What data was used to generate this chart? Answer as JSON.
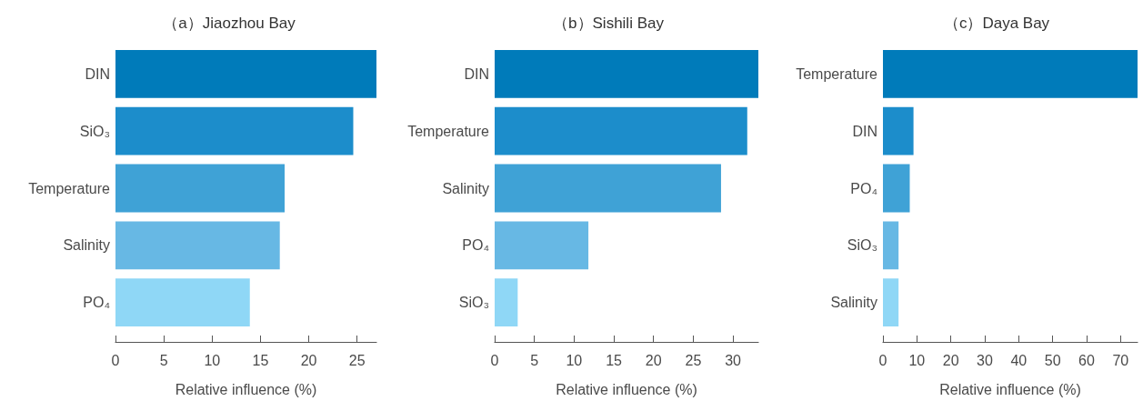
{
  "chart_data": [
    {
      "type": "bar",
      "orientation": "horizontal",
      "title": "（a）Jiaozhou Bay",
      "xlabel": "Relative influence (%)",
      "categories": [
        "DIN",
        "SiO₃",
        "Temperature",
        "Salinity",
        "PO₄"
      ],
      "values": [
        27.0,
        24.6,
        17.5,
        17.0,
        13.9
      ],
      "colors": [
        "#007bba",
        "#1c8dcb",
        "#3fa2d6",
        "#67b8e4",
        "#8fd7f6"
      ],
      "xlim": [
        0,
        27
      ],
      "xticks": [
        0,
        5,
        10,
        15,
        20,
        25
      ],
      "grid": false
    },
    {
      "type": "bar",
      "orientation": "horizontal",
      "title": "（b）Sishili Bay",
      "xlabel": "Relative influence (%)",
      "categories": [
        "DIN",
        "Temperature",
        "Salinity",
        "PO₄",
        "SiO₃"
      ],
      "values": [
        33.2,
        31.8,
        28.5,
        11.8,
        2.9
      ],
      "colors": [
        "#007bba",
        "#1c8dcb",
        "#3fa2d6",
        "#67b8e4",
        "#8fd7f6"
      ],
      "xlim": [
        0,
        33.2
      ],
      "xticks": [
        0,
        5,
        10,
        15,
        20,
        25,
        30
      ],
      "grid": false
    },
    {
      "type": "bar",
      "orientation": "horizontal",
      "title": "（c）Daya Bay",
      "xlabel": "Relative influence (%)",
      "categories": [
        "Temperature",
        "DIN",
        "PO₄",
        "SiO₃",
        "Salinity"
      ],
      "values": [
        75,
        9.0,
        7.9,
        4.6,
        4.6
      ],
      "colors": [
        "#007bba",
        "#1c8dcb",
        "#3fa2d6",
        "#67b8e4",
        "#8fd7f6"
      ],
      "xlim": [
        0,
        75
      ],
      "xticks": [
        0,
        10,
        20,
        30,
        40,
        50,
        60,
        70
      ],
      "grid": false
    }
  ]
}
